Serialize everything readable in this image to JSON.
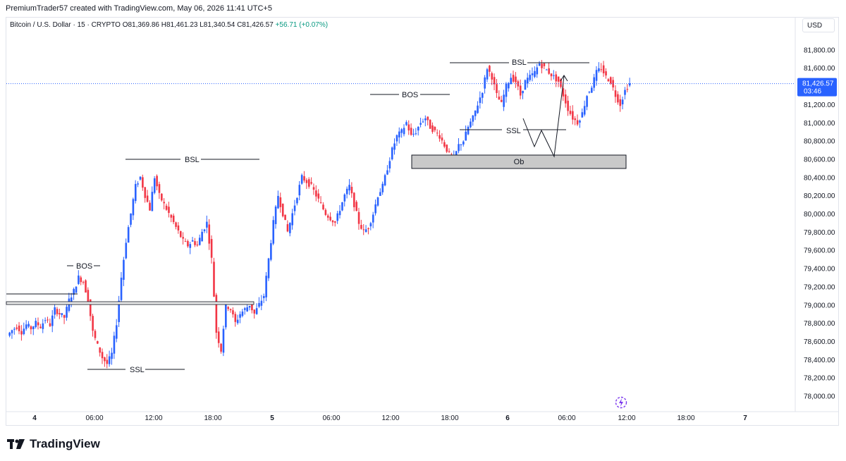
{
  "header": {
    "credit": "PremiumTrader57 created with TradingView.com, May 06, 2026 11:41 UTC+5"
  },
  "symbol": {
    "name": "Bitcoin / U.S. Dollar · 15 · CRYPTO",
    "open": "O81,369.86",
    "high": "H81,461.23",
    "low": "L81,340.54",
    "close": "C81,426.57",
    "change": "+56.71 (+0.07%)"
  },
  "currency_label": "USD",
  "brand": {
    "name": "TradingView"
  },
  "icons": {
    "logo": "tradingview-logo-icon",
    "replay": "lightning-replay-icon"
  },
  "colors": {
    "up": "#2962ff",
    "down": "#f23645",
    "price_tag": "#2962ff",
    "price_line": "#2962ff",
    "ob_fill": "#c9c9c9"
  },
  "chart_data": {
    "type": "candlestick",
    "title": "",
    "xlabel": "",
    "ylabel": "",
    "ylim": [
      77900,
      82000
    ],
    "y_ticks": [
      "78,000.00",
      "78,200.00",
      "78,400.00",
      "78,600.00",
      "78,800.00",
      "79,000.00",
      "79,200.00",
      "79,400.00",
      "79,600.00",
      "79,800.00",
      "80,000.00",
      "80,200.00",
      "80,400.00",
      "80,600.00",
      "80,800.00",
      "81,000.00",
      "81,200.00",
      "81,400.00",
      "81,600.00",
      "81,800.00"
    ],
    "x_ticks": [
      "4",
      "06:00",
      "12:00",
      "18:00",
      "5",
      "06:00",
      "12:00",
      "18:00",
      "6",
      "06:00",
      "12:00",
      "18:00",
      "7"
    ],
    "grid": false,
    "last_price": "81,426.57",
    "countdown": "03:46",
    "close_path": [
      [
        0,
        78660
      ],
      [
        2,
        78720
      ],
      [
        4,
        78760
      ],
      [
        6,
        78700
      ],
      [
        8,
        78780
      ],
      [
        10,
        78740
      ],
      [
        12,
        78800
      ],
      [
        14,
        78760
      ],
      [
        16,
        78840
      ],
      [
        18,
        78780
      ],
      [
        20,
        78950
      ],
      [
        22,
        78900
      ],
      [
        24,
        78860
      ],
      [
        26,
        79050
      ],
      [
        28,
        79150
      ],
      [
        30,
        79300
      ],
      [
        32,
        79250
      ],
      [
        34,
        79060
      ],
      [
        36,
        78700
      ],
      [
        38,
        78550
      ],
      [
        40,
        78420
      ],
      [
        42,
        78350
      ],
      [
        44,
        78460
      ],
      [
        46,
        78800
      ],
      [
        48,
        79300
      ],
      [
        50,
        79700
      ],
      [
        52,
        80000
      ],
      [
        54,
        80300
      ],
      [
        56,
        80400
      ],
      [
        58,
        80200
      ],
      [
        60,
        80050
      ],
      [
        62,
        80400
      ],
      [
        64,
        80200
      ],
      [
        66,
        80100
      ],
      [
        68,
        80000
      ],
      [
        70,
        79900
      ],
      [
        72,
        79800
      ],
      [
        74,
        79700
      ],
      [
        76,
        79650
      ],
      [
        78,
        79700
      ],
      [
        80,
        79650
      ],
      [
        82,
        79800
      ],
      [
        84,
        79900
      ],
      [
        86,
        79500
      ],
      [
        88,
        78700
      ],
      [
        90,
        78500
      ],
      [
        92,
        79000
      ],
      [
        94,
        78950
      ],
      [
        96,
        78800
      ],
      [
        98,
        78900
      ],
      [
        100,
        78950
      ],
      [
        102,
        79000
      ],
      [
        104,
        78900
      ],
      [
        106,
        79000
      ],
      [
        108,
        79100
      ],
      [
        110,
        79500
      ],
      [
        112,
        79900
      ],
      [
        114,
        80200
      ],
      [
        116,
        80000
      ],
      [
        118,
        79800
      ],
      [
        120,
        80000
      ],
      [
        122,
        80200
      ],
      [
        124,
        80400
      ],
      [
        126,
        80350
      ],
      [
        128,
        80300
      ],
      [
        130,
        80200
      ],
      [
        132,
        80100
      ],
      [
        134,
        80000
      ],
      [
        136,
        79950
      ],
      [
        138,
        79900
      ],
      [
        140,
        80050
      ],
      [
        142,
        80200
      ],
      [
        144,
        80300
      ],
      [
        146,
        80100
      ],
      [
        148,
        79900
      ],
      [
        150,
        79800
      ],
      [
        152,
        79850
      ],
      [
        154,
        80000
      ],
      [
        156,
        80200
      ],
      [
        158,
        80300
      ],
      [
        160,
        80500
      ],
      [
        162,
        80700
      ],
      [
        164,
        80850
      ],
      [
        166,
        80900
      ],
      [
        168,
        81000
      ],
      [
        170,
        80850
      ],
      [
        172,
        80900
      ],
      [
        174,
        81000
      ],
      [
        176,
        81050
      ],
      [
        178,
        80950
      ],
      [
        180,
        80900
      ],
      [
        182,
        80850
      ],
      [
        184,
        80750
      ],
      [
        186,
        80650
      ],
      [
        188,
        80600
      ],
      [
        190,
        80750
      ],
      [
        192,
        80800
      ],
      [
        194,
        80950
      ],
      [
        196,
        81050
      ],
      [
        198,
        81200
      ],
      [
        200,
        81350
      ],
      [
        202,
        81600
      ],
      [
        204,
        81500
      ],
      [
        206,
        81300
      ],
      [
        208,
        81200
      ],
      [
        210,
        81400
      ],
      [
        212,
        81500
      ],
      [
        214,
        81450
      ],
      [
        216,
        81300
      ],
      [
        218,
        81450
      ],
      [
        220,
        81500
      ],
      [
        222,
        81550
      ],
      [
        224,
        81650
      ],
      [
        226,
        81600
      ],
      [
        228,
        81550
      ],
      [
        230,
        81500
      ],
      [
        232,
        81450
      ],
      [
        234,
        81300
      ],
      [
        236,
        81150
      ],
      [
        238,
        81050
      ],
      [
        240,
        81000
      ],
      [
        242,
        81100
      ],
      [
        244,
        81300
      ],
      [
        246,
        81400
      ],
      [
        248,
        81550
      ],
      [
        250,
        81600
      ],
      [
        252,
        81500
      ],
      [
        254,
        81450
      ],
      [
        256,
        81300
      ],
      [
        258,
        81200
      ],
      [
        260,
        81350
      ],
      [
        262,
        81426.57
      ]
    ],
    "annotations": [
      {
        "label": "BOS",
        "side": "left"
      },
      {
        "label": "SSL",
        "side": "left"
      },
      {
        "label": "BSL",
        "side": "left"
      },
      {
        "label": "BOS",
        "side": "right"
      },
      {
        "label": "BSL",
        "side": "right"
      },
      {
        "label": "SSL",
        "side": "right"
      },
      {
        "label": "Ob",
        "side": "right"
      }
    ]
  }
}
